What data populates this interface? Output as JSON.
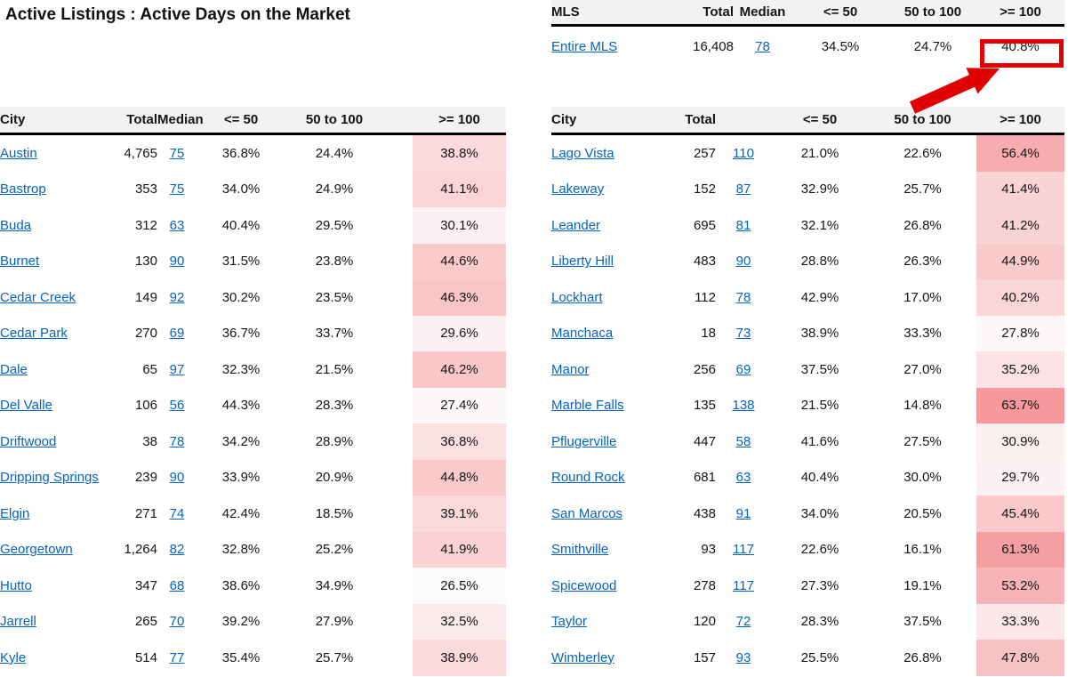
{
  "page_title": "Active Listings : Active Days on the Market",
  "colors": {
    "header_bg": "#F2F2F2",
    "header_border": "#000000",
    "link_blue": "#0563C1",
    "text": "#151515",
    "annotation_red": "#E10000"
  },
  "heat_scale": {
    "min": 26.5,
    "max": 63.7,
    "low": "#FDFAFB",
    "high": "#F5999C"
  },
  "mls_table": {
    "headers": [
      "MLS",
      "Total",
      "Median",
      "<= 50",
      "50 to 100",
      ">= 100"
    ],
    "rows": [
      {
        "name": "Entire MLS",
        "total": "16,408",
        "median": "78",
        "le50": "34.5%",
        "mid": "24.7%",
        "ge100": "40.8%"
      }
    ]
  },
  "left_table": {
    "headers": [
      "City",
      "Total",
      "Median",
      "<= 50",
      "50 to 100",
      ">= 100"
    ],
    "rows": [
      {
        "city": "Austin",
        "total": "4,765",
        "median": "75",
        "le50": "36.8%",
        "mid": "24.4%",
        "ge100": "38.8%"
      },
      {
        "city": "Bastrop",
        "total": "353",
        "median": "75",
        "le50": "34.0%",
        "mid": "24.9%",
        "ge100": "41.1%"
      },
      {
        "city": "Buda",
        "total": "312",
        "median": "63",
        "le50": "40.4%",
        "mid": "29.5%",
        "ge100": "30.1%"
      },
      {
        "city": "Burnet",
        "total": "130",
        "median": "90",
        "le50": "31.5%",
        "mid": "23.8%",
        "ge100": "44.6%"
      },
      {
        "city": "Cedar Creek",
        "total": "149",
        "median": "92",
        "le50": "30.2%",
        "mid": "23.5%",
        "ge100": "46.3%"
      },
      {
        "city": "Cedar Park",
        "total": "270",
        "median": "69",
        "le50": "36.7%",
        "mid": "33.7%",
        "ge100": "29.6%"
      },
      {
        "city": "Dale",
        "total": "65",
        "median": "97",
        "le50": "32.3%",
        "mid": "21.5%",
        "ge100": "46.2%"
      },
      {
        "city": "Del Valle",
        "total": "106",
        "median": "56",
        "le50": "44.3%",
        "mid": "28.3%",
        "ge100": "27.4%"
      },
      {
        "city": "Driftwood",
        "total": "38",
        "median": "78",
        "le50": "34.2%",
        "mid": "28.9%",
        "ge100": "36.8%"
      },
      {
        "city": "Dripping Springs",
        "total": "239",
        "median": "90",
        "le50": "33.9%",
        "mid": "20.9%",
        "ge100": "44.8%"
      },
      {
        "city": "Elgin",
        "total": "271",
        "median": "74",
        "le50": "42.4%",
        "mid": "18.5%",
        "ge100": "39.1%"
      },
      {
        "city": "Georgetown",
        "total": "1,264",
        "median": "82",
        "le50": "32.8%",
        "mid": "25.2%",
        "ge100": "41.9%"
      },
      {
        "city": "Hutto",
        "total": "347",
        "median": "68",
        "le50": "38.6%",
        "mid": "34.9%",
        "ge100": "26.5%"
      },
      {
        "city": "Jarrell",
        "total": "265",
        "median": "70",
        "le50": "39.2%",
        "mid": "27.9%",
        "ge100": "32.5%"
      },
      {
        "city": "Kyle",
        "total": "514",
        "median": "77",
        "le50": "35.4%",
        "mid": "25.7%",
        "ge100": "38.9%"
      }
    ]
  },
  "right_table": {
    "headers": [
      "City",
      "Total",
      "",
      "<= 50",
      "50 to 100",
      ">= 100"
    ],
    "rows": [
      {
        "city": "Lago Vista",
        "total": "257",
        "median": "110",
        "le50": "21.0%",
        "mid": "22.6%",
        "ge100": "56.4%"
      },
      {
        "city": "Lakeway",
        "total": "152",
        "median": "87",
        "le50": "32.9%",
        "mid": "25.7%",
        "ge100": "41.4%"
      },
      {
        "city": "Leander",
        "total": "695",
        "median": "81",
        "le50": "32.1%",
        "mid": "26.8%",
        "ge100": "41.2%"
      },
      {
        "city": "Liberty Hill",
        "total": "483",
        "median": "90",
        "le50": "28.8%",
        "mid": "26.3%",
        "ge100": "44.9%"
      },
      {
        "city": "Lockhart",
        "total": "112",
        "median": "78",
        "le50": "42.9%",
        "mid": "17.0%",
        "ge100": "40.2%"
      },
      {
        "city": "Manchaca",
        "total": "18",
        "median": "73",
        "le50": "38.9%",
        "mid": "33.3%",
        "ge100": "27.8%"
      },
      {
        "city": "Manor",
        "total": "256",
        "median": "69",
        "le50": "37.5%",
        "mid": "27.0%",
        "ge100": "35.2%"
      },
      {
        "city": "Marble Falls",
        "total": "135",
        "median": "138",
        "le50": "21.5%",
        "mid": "14.8%",
        "ge100": "63.7%"
      },
      {
        "city": "Pflugerville",
        "total": "447",
        "median": "58",
        "le50": "41.6%",
        "mid": "27.5%",
        "ge100": "30.9%"
      },
      {
        "city": "Round Rock",
        "total": "681",
        "median": "63",
        "le50": "40.4%",
        "mid": "30.0%",
        "ge100": "29.7%"
      },
      {
        "city": "San Marcos",
        "total": "438",
        "median": "91",
        "le50": "34.0%",
        "mid": "20.5%",
        "ge100": "45.4%"
      },
      {
        "city": "Smithville",
        "total": "93",
        "median": "117",
        "le50": "22.6%",
        "mid": "16.1%",
        "ge100": "61.3%"
      },
      {
        "city": "Spicewood",
        "total": "278",
        "median": "117",
        "le50": "27.3%",
        "mid": "19.1%",
        "ge100": "53.2%"
      },
      {
        "city": "Taylor",
        "total": "120",
        "median": "72",
        "le50": "28.3%",
        "mid": "37.5%",
        "ge100": "33.3%"
      },
      {
        "city": "Wimberley",
        "total": "157",
        "median": "93",
        "le50": "25.5%",
        "mid": "26.8%",
        "ge100": "47.8%"
      }
    ]
  }
}
